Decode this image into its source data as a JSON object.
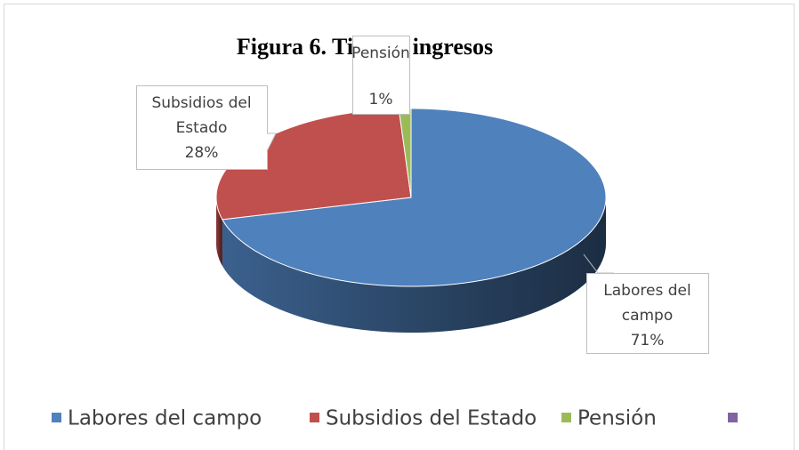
{
  "chart_data": {
    "type": "pie3d",
    "title": "Figura 6. Tipo de ingresos",
    "categories": [
      "Labores del campo",
      "Subsidios del Estado",
      "Pensión",
      null
    ],
    "values": [
      71,
      28,
      1,
      0
    ],
    "value_labels": [
      "71%",
      "28%",
      "1%",
      null
    ],
    "colors": [
      "#4f81bd",
      "#c0504d",
      "#9bbb59",
      "#8064a2"
    ],
    "legend": "bottom"
  }
}
